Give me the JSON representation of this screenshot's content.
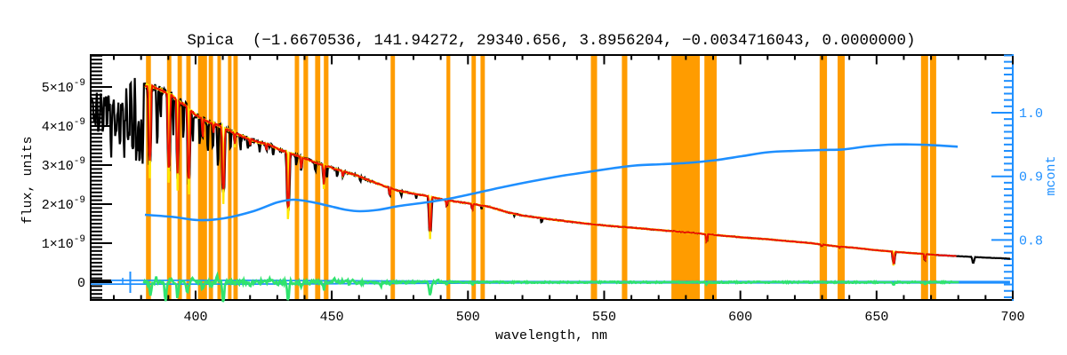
{
  "chart_data": {
    "type": "line",
    "title": "Spica  (−1.6670536, 141.94272, 29340.656, 3.8956204, −0.0034716043, 0.0000000)",
    "xlabel": "wavelength, nm",
    "ylabel_left": "flux, units",
    "ylabel_right": "mcont",
    "x_range_nm": [
      361.5,
      700
    ],
    "x_major_ticks": [
      400,
      450,
      500,
      550,
      600,
      650,
      700
    ],
    "x_minor_step": 10,
    "y_left_range_1e9": [
      -0.44,
      5.82
    ],
    "y_left_major_ticks_1e9": [
      0,
      1,
      2,
      3,
      4,
      5
    ],
    "y_left_tick_labels": [
      {
        "mantissa": "0",
        "exponent": ""
      },
      {
        "mantissa": "1×10",
        "exponent": "-9"
      },
      {
        "mantissa": "2×10",
        "exponent": "-9"
      },
      {
        "mantissa": "3×10",
        "exponent": "-9"
      },
      {
        "mantissa": "4×10",
        "exponent": "-9"
      },
      {
        "mantissa": "5×10",
        "exponent": "-9"
      }
    ],
    "y_left_minor_step_1e9": 0.1,
    "y_right_range": [
      0.707,
      1.091
    ],
    "y_right_major_ticks": [
      0.8,
      0.9,
      1.0
    ],
    "y_right_tick_labels": [
      "0.8",
      "0.9",
      "1.0"
    ],
    "y_right_minor_step": 0.01,
    "grid": false,
    "legend": "none",
    "band_color": "#FF9C00",
    "telluric_bands_nm": [
      [
        381.8,
        383.6
      ],
      [
        389.5,
        391.1
      ],
      [
        393.4,
        395.0
      ],
      [
        396.6,
        398.2
      ],
      [
        400.9,
        404.2
      ],
      [
        404.8,
        406.4
      ],
      [
        408.0,
        409.3
      ],
      [
        411.9,
        413.2
      ],
      [
        413.9,
        415.5
      ],
      [
        436.4,
        438.0
      ],
      [
        439.6,
        441.3
      ],
      [
        443.9,
        445.8
      ],
      [
        447.1,
        448.8
      ],
      [
        471.6,
        473.2
      ],
      [
        492.1,
        493.5
      ],
      [
        501.3,
        502.9
      ],
      [
        504.6,
        506.2
      ],
      [
        545.1,
        547.4
      ],
      [
        556.5,
        558.5
      ],
      [
        574.7,
        585.1
      ],
      [
        586.8,
        591.3
      ],
      [
        629.1,
        631.8
      ],
      [
        635.7,
        638.3
      ],
      [
        666.3,
        668.9
      ],
      [
        669.6,
        671.9
      ]
    ],
    "series": {
      "observed_spectrum": {
        "color": "#000000",
        "lambda_start": 361.6,
        "lambda_end": 699.2,
        "noise_end": 381.2,
        "continuum_flux_1e9": [
          [
            361.6,
            4.72
          ],
          [
            365,
            4.68
          ],
          [
            368,
            4.62
          ],
          [
            371,
            4.66
          ],
          [
            374,
            4.8
          ],
          [
            377,
            4.92
          ],
          [
            380,
            5.0
          ],
          [
            381.5,
            5.03
          ],
          [
            383,
            5.05
          ],
          [
            387,
            4.93
          ],
          [
            391,
            4.8
          ],
          [
            394,
            4.62
          ],
          [
            397,
            4.5
          ],
          [
            400,
            4.28
          ],
          [
            404,
            4.12
          ],
          [
            407,
            4.05
          ],
          [
            410,
            3.97
          ],
          [
            413,
            3.86
          ],
          [
            417,
            3.74
          ],
          [
            420,
            3.66
          ],
          [
            424,
            3.57
          ],
          [
            427,
            3.52
          ],
          [
            430,
            3.42
          ],
          [
            433,
            3.34
          ],
          [
            436,
            3.27
          ],
          [
            440,
            3.17
          ],
          [
            443,
            3.09
          ],
          [
            446,
            3.02
          ],
          [
            450,
            2.93
          ],
          [
            453,
            2.86
          ],
          [
            456,
            2.8
          ],
          [
            459,
            2.74
          ],
          [
            464,
            2.6
          ],
          [
            469,
            2.47
          ],
          [
            474,
            2.35
          ],
          [
            479,
            2.28
          ],
          [
            484,
            2.22
          ],
          [
            488,
            2.16
          ],
          [
            492,
            2.1
          ],
          [
            497,
            2.05
          ],
          [
            502,
            2.0
          ],
          [
            508,
            1.93
          ],
          [
            514,
            1.8
          ],
          [
            520,
            1.71
          ],
          [
            527,
            1.64
          ],
          [
            534,
            1.58
          ],
          [
            541,
            1.52
          ],
          [
            549,
            1.46
          ],
          [
            556,
            1.42
          ],
          [
            563,
            1.38
          ],
          [
            571,
            1.33
          ],
          [
            578,
            1.29
          ],
          [
            586,
            1.24
          ],
          [
            594,
            1.19
          ],
          [
            602,
            1.14
          ],
          [
            610,
            1.1
          ],
          [
            618,
            1.05
          ],
          [
            626,
            1.0
          ],
          [
            634,
            0.93
          ],
          [
            642,
            0.88
          ],
          [
            650,
            0.82
          ],
          [
            658,
            0.77
          ],
          [
            666,
            0.73
          ],
          [
            674,
            0.69
          ],
          [
            682,
            0.66
          ],
          [
            690,
            0.63
          ],
          [
            695,
            0.615
          ],
          [
            700,
            0.6
          ]
        ],
        "absorption_lines": [
          [
            383.2,
            0.4,
            0.6
          ],
          [
            390.2,
            0.41,
            0.6
          ],
          [
            393.4,
            0.42,
            0.45
          ],
          [
            397.5,
            0.43,
            0.6
          ],
          [
            402.6,
            0.12,
            0.3
          ],
          [
            406.5,
            0.06,
            0.25
          ],
          [
            410.2,
            0.42,
            0.65
          ],
          [
            414.4,
            0.08,
            0.3
          ],
          [
            420.0,
            0.05,
            0.25
          ],
          [
            426.0,
            0.05,
            0.25
          ],
          [
            434.0,
            0.44,
            0.65
          ],
          [
            438.8,
            0.1,
            0.3
          ],
          [
            447.1,
            0.17,
            0.35
          ],
          [
            454.1,
            0.05,
            0.25
          ],
          [
            471.3,
            0.08,
            0.3
          ],
          [
            486.1,
            0.42,
            0.6
          ],
          [
            492.2,
            0.07,
            0.3
          ],
          [
            501.6,
            0.07,
            0.3
          ],
          [
            587.6,
            0.16,
            0.35
          ],
          [
            630.0,
            0.05,
            0.3
          ],
          [
            636.4,
            0.05,
            0.3
          ],
          [
            656.3,
            0.4,
            0.5
          ],
          [
            667.8,
            0.22,
            0.35
          ],
          [
            685.5,
            0.23,
            0.45
          ]
        ],
        "black_only_dips": [
          [
            385.9,
            0.3,
            0.3
          ],
          [
            387.2,
            0.15,
            0.25
          ],
          [
            391.8,
            0.2,
            0.25
          ],
          [
            395.5,
            0.2,
            0.25
          ],
          [
            399.0,
            0.18,
            0.25
          ],
          [
            401.5,
            0.15,
            0.25
          ],
          [
            404.5,
            0.18,
            0.25
          ],
          [
            406.3,
            0.12,
            0.25
          ],
          [
            408.2,
            0.25,
            0.3
          ],
          [
            412.8,
            0.12,
            0.25
          ],
          [
            416.5,
            0.1,
            0.25
          ],
          [
            419.2,
            0.08,
            0.25
          ],
          [
            423.5,
            0.08,
            0.25
          ],
          [
            428.5,
            0.07,
            0.25
          ],
          [
            437.0,
            0.08,
            0.25
          ],
          [
            444.0,
            0.07,
            0.25
          ],
          [
            448.2,
            0.09,
            0.25
          ],
          [
            452.0,
            0.06,
            0.25
          ],
          [
            460.5,
            0.05,
            0.25
          ],
          [
            475.5,
            0.05,
            0.25
          ],
          [
            481.0,
            0.05,
            0.25
          ],
          [
            505.0,
            0.05,
            0.25
          ],
          [
            517.0,
            0.04,
            0.25
          ],
          [
            527.0,
            0.06,
            0.3
          ]
        ],
        "uv_noise_dips": [
          [
            363.0,
            0.08,
            0.25
          ],
          [
            364.5,
            0.12,
            0.3
          ],
          [
            366.0,
            0.16,
            0.3
          ],
          [
            367.5,
            0.13,
            0.3
          ],
          [
            369.0,
            0.2,
            0.35
          ],
          [
            370.5,
            0.17,
            0.3
          ],
          [
            372.2,
            0.24,
            0.35
          ],
          [
            373.8,
            0.22,
            0.35
          ],
          [
            375.3,
            0.28,
            0.4
          ],
          [
            376.9,
            0.32,
            0.4
          ],
          [
            378.5,
            0.33,
            0.45
          ],
          [
            379.5,
            0.35,
            0.4
          ],
          [
            380.6,
            0.25,
            0.35
          ]
        ]
      },
      "model_fit": {
        "color": "#EE1100",
        "lambda_start": 381.4,
        "lambda_end": 679.5,
        "depth_scale": 0.95,
        "width_scale": 0.8
      },
      "model_alt": {
        "color": "#FFE800",
        "lambda_start": 381.4,
        "lambda_end": 672.0,
        "depth_scale": 1.18,
        "width_scale": 0.45
      },
      "residual": {
        "color": "#2FE36E",
        "lambda_start": 381.0,
        "lambda_end": 680.5,
        "zero_level": 0,
        "spikes": [
          [
            383.5,
            -0.3,
            0.45
          ],
          [
            385.5,
            0.12,
            0.4
          ],
          [
            389.0,
            -0.52,
            0.45
          ],
          [
            391.0,
            0.1,
            0.4
          ],
          [
            393.4,
            -0.45,
            0.4
          ],
          [
            396.9,
            -0.3,
            0.45
          ],
          [
            399.0,
            0.12,
            0.4
          ],
          [
            402.6,
            -0.2,
            0.4
          ],
          [
            406.0,
            -0.1,
            0.35
          ],
          [
            408.0,
            0.14,
            0.4
          ],
          [
            410.2,
            -0.52,
            0.45
          ],
          [
            412.5,
            0.1,
            0.35
          ],
          [
            414.4,
            -0.12,
            0.35
          ],
          [
            420.0,
            -0.08,
            0.35
          ],
          [
            427.0,
            0.06,
            0.4
          ],
          [
            430.0,
            -0.08,
            0.35
          ],
          [
            434.0,
            -0.55,
            0.45
          ],
          [
            438.8,
            -0.12,
            0.4
          ],
          [
            441.0,
            0.08,
            0.35
          ],
          [
            447.1,
            -0.16,
            0.4
          ],
          [
            451.0,
            0.06,
            0.35
          ],
          [
            458.0,
            0.05,
            0.4
          ],
          [
            468.0,
            -0.1,
            0.4
          ],
          [
            471.3,
            -0.08,
            0.35
          ],
          [
            486.1,
            -0.35,
            0.45
          ],
          [
            489.0,
            0.08,
            0.35
          ],
          [
            492.2,
            -0.08,
            0.35
          ],
          [
            501.6,
            -0.06,
            0.35
          ],
          [
            587.6,
            -0.05,
            0.35
          ],
          [
            656.3,
            -0.07,
            0.35
          ],
          [
            667.8,
            -0.05,
            0.35
          ]
        ]
      },
      "continuum_ratio": {
        "color": "#1E8FFF",
        "points": [
          [
            381.4,
            0.8396
          ],
          [
            391.9,
            0.8361
          ],
          [
            401.0,
            0.8312
          ],
          [
            410.4,
            0.834
          ],
          [
            421.2,
            0.8452
          ],
          [
            430.0,
            0.8591
          ],
          [
            435.9,
            0.8633
          ],
          [
            442.4,
            0.8598
          ],
          [
            448.9,
            0.8536
          ],
          [
            455.4,
            0.8473
          ],
          [
            460.3,
            0.8452
          ],
          [
            466.9,
            0.8473
          ],
          [
            475.0,
            0.8536
          ],
          [
            484.8,
            0.8591
          ],
          [
            494.6,
            0.8661
          ],
          [
            504.4,
            0.8752
          ],
          [
            514.1,
            0.8843
          ],
          [
            523.9,
            0.8926
          ],
          [
            533.7,
            0.9003
          ],
          [
            543.5,
            0.9066
          ],
          [
            553.3,
            0.9128
          ],
          [
            561.4,
            0.917
          ],
          [
            571.2,
            0.9191
          ],
          [
            581.0,
            0.9212
          ],
          [
            590.8,
            0.9254
          ],
          [
            600.5,
            0.9317
          ],
          [
            610.3,
            0.938
          ],
          [
            620.1,
            0.94
          ],
          [
            629.9,
            0.9414
          ],
          [
            638.0,
            0.9424
          ],
          [
            646.2,
            0.947
          ],
          [
            654.3,
            0.9498
          ],
          [
            660.9,
            0.9502
          ],
          [
            669.0,
            0.9494
          ],
          [
            679.8,
            0.9466
          ]
        ]
      },
      "zero_line": {
        "color": "#1E8FFF"
      }
    }
  }
}
